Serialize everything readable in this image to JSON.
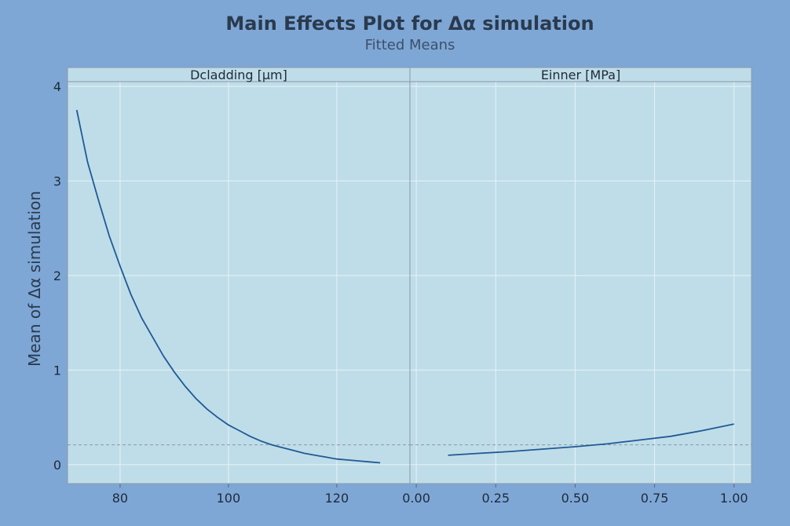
{
  "chart_data": {
    "type": "line",
    "title": "Main Effects Plot for Δα simulation",
    "subtitle": "Fitted Means",
    "ylabel": "Mean of Δα simulation",
    "ylim": [
      -0.2,
      4.05
    ],
    "yticks": [
      0,
      1,
      2,
      3,
      4
    ],
    "reference_line": 0.21,
    "grid": true,
    "colors": {
      "outer_background": "#7ea7d6",
      "plot_background": "#bfdde8",
      "line": "#1f5a96",
      "grid": "#e7f2f7",
      "reference_line": "#8a98a8"
    },
    "panels": [
      {
        "label": "Dcladding [µm]",
        "xlim": [
          70.3,
          133.5
        ],
        "xticks": [
          "80",
          "100",
          "120"
        ],
        "xtick_values": [
          80,
          100,
          120
        ],
        "x": [
          72,
          74,
          76,
          78,
          80,
          82,
          84,
          86,
          88,
          90,
          92,
          94,
          96,
          98,
          100,
          102,
          104,
          106,
          108,
          110,
          112,
          114,
          116,
          118,
          120,
          122,
          124,
          126,
          128
        ],
        "y": [
          3.75,
          3.2,
          2.8,
          2.42,
          2.1,
          1.8,
          1.55,
          1.35,
          1.15,
          0.98,
          0.83,
          0.7,
          0.59,
          0.5,
          0.42,
          0.36,
          0.3,
          0.25,
          0.21,
          0.18,
          0.15,
          0.12,
          0.1,
          0.08,
          0.06,
          0.05,
          0.04,
          0.03,
          0.02
        ]
      },
      {
        "label": "Einner [MPa]",
        "xlim": [
          -0.02,
          1.055
        ],
        "xticks": [
          "0.00",
          "0.25",
          "0.50",
          "0.75",
          "1.00"
        ],
        "xtick_values": [
          0.0,
          0.25,
          0.5,
          0.75,
          1.0
        ],
        "x": [
          0.1,
          0.2,
          0.3,
          0.4,
          0.5,
          0.6,
          0.7,
          0.8,
          0.9,
          1.0
        ],
        "y": [
          0.1,
          0.12,
          0.14,
          0.165,
          0.19,
          0.22,
          0.26,
          0.3,
          0.36,
          0.43
        ]
      }
    ]
  }
}
